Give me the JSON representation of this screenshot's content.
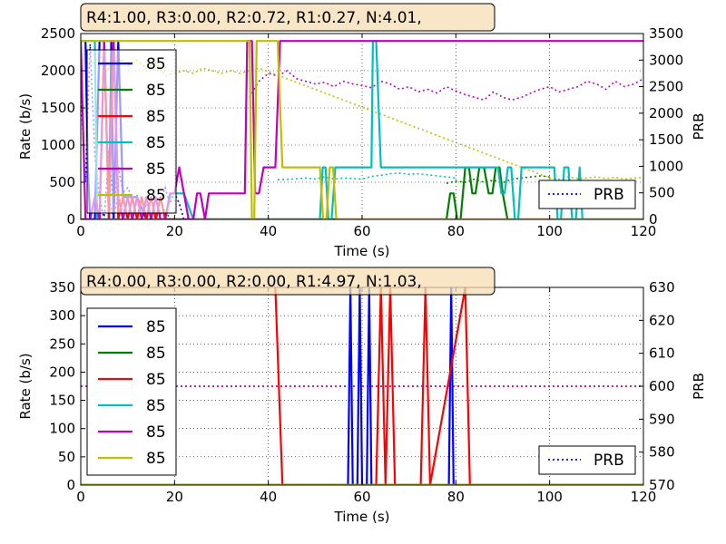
{
  "chart_data": [
    {
      "type": "line",
      "title": "R4:1.00, R3:0.00, R2:0.72, R1:0.27, N:4.01,",
      "xlabel": "Time (s)",
      "ylabel": "Rate (b/s)",
      "y2label": "PRB",
      "xlim": [
        0,
        120
      ],
      "ylim": [
        0,
        2500
      ],
      "y2lim": [
        0,
        3500
      ],
      "xticks": [
        "0",
        "20",
        "40",
        "60",
        "80",
        "100",
        "120"
      ],
      "yticks": [
        "0",
        "500",
        "1000",
        "1500",
        "2000",
        "2500"
      ],
      "y2ticks": [
        "0",
        "500",
        "1000",
        "1500",
        "2000",
        "2500",
        "3000",
        "3500"
      ],
      "grid": true,
      "legend_position": "left",
      "prb_legend_position": "lower-right",
      "series": [
        {
          "name": "85",
          "color": "#0000ff",
          "x": [
            0,
            1,
            1.5,
            2,
            3,
            4,
            5,
            6,
            6.5,
            7,
            8,
            9,
            12,
            14,
            17,
            18,
            20
          ],
          "values": [
            2400,
            2400,
            700,
            0,
            0,
            2400,
            2400,
            0,
            2400,
            0,
            2400,
            300,
            300,
            0,
            0,
            0,
            0
          ]
        },
        {
          "name": "85",
          "color": "#008000",
          "x": [
            0,
            78,
            78.8,
            79.5,
            80.3,
            81,
            82,
            82.8,
            83.5,
            84.2,
            85,
            86,
            87,
            87.8,
            88.5,
            89.3,
            90,
            91,
            120
          ],
          "values": [
            0,
            0,
            350,
            350,
            0,
            0,
            700,
            700,
            350,
            350,
            700,
            700,
            350,
            350,
            700,
            700,
            350,
            0,
            0
          ]
        },
        {
          "name": "85",
          "color": "#ff0000",
          "x": [
            0,
            4,
            5,
            6,
            7,
            8,
            9,
            10,
            11,
            12,
            13,
            14,
            15,
            16,
            17,
            18,
            19,
            120
          ],
          "values": [
            0,
            0,
            2400,
            0,
            2400,
            0,
            300,
            0,
            300,
            0,
            300,
            0,
            300,
            0,
            300,
            0,
            0,
            0
          ]
        },
        {
          "name": "85",
          "color": "#00bfbf",
          "x": [
            0,
            0.7,
            1,
            3,
            3.5,
            12,
            18,
            19.3,
            22,
            24,
            26,
            27,
            51,
            51.6,
            52.2,
            52.8,
            53.5,
            54.3,
            55,
            62,
            62.3,
            63,
            64,
            65,
            89,
            89.7,
            90.4,
            91.1,
            91.8,
            92.6,
            93.3,
            94,
            101,
            101.7,
            102.4,
            103.1,
            104,
            104.8,
            105.6,
            106.4,
            107,
            120
          ],
          "values": [
            2400,
            2400,
            2400,
            2400,
            0,
            0,
            0,
            350,
            350,
            0,
            0,
            0,
            0,
            700,
            700,
            0,
            0,
            700,
            700,
            700,
            2400,
            2400,
            700,
            700,
            700,
            350,
            350,
            700,
            700,
            0,
            0,
            700,
            700,
            0,
            0,
            700,
            700,
            0,
            0,
            700,
            0,
            0
          ]
        },
        {
          "name": "85",
          "color": "#bf00bf",
          "x": [
            0,
            0.5,
            1,
            2,
            3,
            4,
            5,
            7,
            8,
            9,
            10,
            11,
            12,
            13,
            14,
            15,
            16,
            17,
            18,
            19,
            20,
            21,
            22,
            23,
            24,
            24.8,
            25.5,
            26.5,
            27.3,
            28,
            35,
            35.5,
            36.5,
            37.2,
            38,
            39,
            41.5,
            42.5,
            44,
            120
          ],
          "values": [
            2400,
            1200,
            0,
            0,
            300,
            0,
            2400,
            2400,
            300,
            0,
            300,
            0,
            300,
            0,
            300,
            0,
            300,
            0,
            0,
            350,
            350,
            700,
            350,
            0,
            0,
            350,
            350,
            0,
            350,
            350,
            350,
            2400,
            2400,
            350,
            350,
            700,
            700,
            2400,
            2400,
            2400
          ]
        },
        {
          "name": "85",
          "color": "#bfbf00",
          "x": [
            0,
            3,
            3.5,
            5,
            8,
            9,
            10,
            12,
            14,
            16,
            18,
            20,
            22,
            24,
            26,
            28,
            35,
            36,
            36.5,
            37,
            37.5,
            39,
            41,
            42,
            43,
            50,
            51,
            51.7,
            52.4,
            53.1,
            53.8,
            54.5,
            55,
            56,
            120
          ],
          "values": [
            2400,
            2400,
            2400,
            2400,
            2400,
            2400,
            2400,
            2400,
            2400,
            2400,
            2400,
            2400,
            2400,
            2400,
            2400,
            2400,
            2400,
            2400,
            0,
            0,
            2400,
            2400,
            2400,
            2400,
            700,
            700,
            700,
            0,
            0,
            700,
            700,
            0,
            0,
            0,
            0
          ]
        }
      ],
      "prb_series": [
        {
          "name": "PRB",
          "color": "#0000ff",
          "x": [
            0,
            1,
            2,
            3,
            4,
            5,
            6,
            7,
            8,
            9,
            10,
            11,
            12,
            13,
            14,
            15,
            16,
            17,
            18,
            19,
            20,
            21,
            22,
            24,
            26
          ],
          "values": [
            2400,
            700,
            3300,
            1200,
            400,
            0,
            1300,
            200,
            1000,
            500,
            600,
            400,
            450,
            400,
            400,
            350,
            400,
            350,
            600,
            300,
            500,
            300,
            0,
            0,
            0
          ]
        },
        {
          "name": "",
          "color": "#ff0000",
          "x": [
            0,
            3,
            4,
            5,
            6,
            7,
            8,
            9,
            10,
            11,
            12,
            13,
            14,
            15,
            16,
            17,
            18,
            19,
            20,
            25
          ],
          "values": [
            0,
            0,
            100,
            3200,
            400,
            0,
            500,
            100,
            400,
            0,
            350,
            0,
            300,
            0,
            400,
            100,
            200,
            0,
            0,
            0
          ]
        },
        {
          "name": "",
          "color": "#00bfbf",
          "x": [
            42,
            45,
            48,
            50,
            52,
            54,
            56,
            58,
            60,
            62,
            64,
            66,
            68,
            70,
            72,
            74,
            76,
            78,
            80
          ],
          "values": [
            750,
            760,
            780,
            760,
            800,
            760,
            780,
            770,
            760,
            810,
            830,
            860,
            870,
            850,
            860,
            840,
            820,
            800,
            780
          ]
        },
        {
          "name": "",
          "color": "#008000",
          "x": [
            78,
            80,
            82,
            84,
            86,
            88,
            90,
            92,
            94,
            96,
            98,
            100
          ],
          "values": [
            680,
            720,
            700,
            760,
            700,
            740,
            690,
            760,
            780,
            800,
            820,
            800
          ]
        },
        {
          "name": "",
          "color": "#bf00bf",
          "x": [
            36,
            38,
            40,
            42,
            44,
            46,
            48,
            50,
            52,
            54,
            56,
            58,
            60,
            62,
            64,
            66,
            68,
            70,
            72,
            74,
            76,
            78,
            80,
            82,
            84,
            86,
            88,
            90,
            92,
            94,
            96,
            98,
            100,
            102,
            104,
            106,
            108,
            110,
            112,
            114,
            116,
            118,
            120
          ],
          "values": [
            2300,
            2600,
            2750,
            2700,
            2800,
            2650,
            2600,
            2550,
            2580,
            2500,
            2600,
            2550,
            2520,
            2480,
            2600,
            2550,
            2450,
            2500,
            2400,
            2450,
            2380,
            2500,
            2420,
            2350,
            2300,
            2250,
            2400,
            2300,
            2250,
            2300,
            2380,
            2450,
            2500,
            2400,
            2450,
            2500,
            2600,
            2550,
            2450,
            2600,
            2500,
            2550,
            2650
          ]
        },
        {
          "name": "",
          "color": "#bfbf00",
          "x": [
            0,
            2,
            4,
            6,
            8,
            10,
            12,
            14,
            16,
            18,
            20,
            22,
            24,
            26,
            28,
            30,
            32,
            34,
            36,
            38,
            100,
            102,
            104,
            106,
            108,
            110,
            112,
            114,
            116,
            118,
            120
          ],
          "values": [
            3000,
            2900,
            3100,
            2800,
            3050,
            2900,
            3000,
            2850,
            2950,
            2700,
            2750,
            2800,
            2750,
            2850,
            2800,
            2750,
            2800,
            2750,
            2800,
            2850,
            780,
            760,
            800,
            770,
            780,
            800,
            770,
            790,
            760,
            780,
            790
          ]
        }
      ]
    },
    {
      "type": "line",
      "title": "R4:0.00, R3:0.00, R2:0.00, R1:4.97, N:1.03,",
      "xlabel": "Time (s)",
      "ylabel": "Rate (b/s)",
      "y2label": "PRB",
      "xlim": [
        0,
        120
      ],
      "ylim": [
        0,
        350
      ],
      "y2lim": [
        570,
        630
      ],
      "xticks": [
        "0",
        "20",
        "40",
        "60",
        "80",
        "100",
        "120"
      ],
      "yticks": [
        "0",
        "50",
        "100",
        "150",
        "200",
        "250",
        "300",
        "350"
      ],
      "y2ticks": [
        "570",
        "580",
        "590",
        "600",
        "610",
        "620",
        "630"
      ],
      "grid": true,
      "legend_position": "left",
      "prb_legend_position": "lower-right",
      "series": [
        {
          "name": "85",
          "color": "#0000ff",
          "x": [
            0,
            57,
            57.5,
            58,
            59,
            59.5,
            60,
            61,
            61.5,
            62,
            62.5,
            78.5,
            79,
            79.5,
            120
          ],
          "values": [
            0,
            0,
            350,
            0,
            0,
            350,
            0,
            0,
            350,
            0,
            0,
            0,
            350,
            0,
            0
          ]
        },
        {
          "name": "85",
          "color": "#008000",
          "x": [
            0,
            120
          ],
          "values": [
            0,
            0
          ]
        },
        {
          "name": "85",
          "color": "#ff0000",
          "x": [
            41.5,
            43,
            63,
            64,
            65,
            66,
            67,
            72.5,
            73.5,
            74.5,
            82,
            83,
            120
          ],
          "values": [
            350,
            0,
            0,
            350,
            0,
            350,
            0,
            0,
            350,
            0,
            350,
            0,
            0
          ]
        },
        {
          "name": "85",
          "color": "#00bfbf",
          "x": [
            0,
            120
          ],
          "values": [
            0,
            0
          ]
        },
        {
          "name": "85",
          "color": "#bf00bf",
          "x": [
            0,
            120
          ],
          "values": [
            0,
            0
          ]
        },
        {
          "name": "85",
          "color": "#bfbf00",
          "x": [
            0,
            120
          ],
          "values": [
            0,
            0
          ]
        }
      ],
      "prb_series": [
        {
          "name": "PRB",
          "color": "#0000ff",
          "x": [
            0,
            120
          ],
          "values": [
            600,
            600
          ]
        },
        {
          "name": "",
          "color": "#bfbf00",
          "x": [
            0,
            120
          ],
          "values": [
            600,
            600
          ]
        },
        {
          "name": "",
          "color": "#bf00bf",
          "x": [
            0,
            120
          ],
          "values": [
            600,
            600
          ]
        }
      ]
    }
  ]
}
